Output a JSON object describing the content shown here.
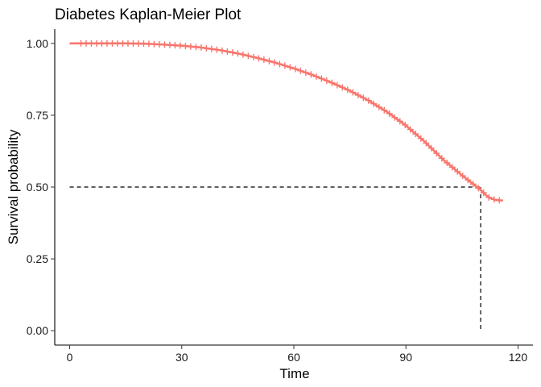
{
  "chart_data": {
    "type": "line",
    "title": "Diabetes Kaplan-Meier Plot",
    "xlabel": "Time",
    "ylabel": "Survival probability",
    "xlim": [
      -4,
      124
    ],
    "ylim": [
      -0.05,
      1.05
    ],
    "xticks": [
      0,
      30,
      60,
      90,
      120
    ],
    "xtick_labels": [
      "0",
      "30",
      "60",
      "90",
      "120"
    ],
    "yticks": [
      0,
      0.25,
      0.5,
      0.75,
      1.0
    ],
    "ytick_labels": [
      "0.00",
      "0.25",
      "0.50",
      "0.75",
      "1.00"
    ],
    "grid": false,
    "legend": "none",
    "series": [
      {
        "color": "#F8766D",
        "x": [
          0,
          5,
          10,
          15,
          20,
          25,
          30,
          35,
          40,
          45,
          50,
          55,
          60,
          65,
          70,
          75,
          80,
          85,
          90,
          95,
          100,
          105,
          110,
          112,
          114,
          116
        ],
        "y": [
          1.0,
          1.0,
          1.0,
          1.0,
          0.999,
          0.996,
          0.992,
          0.986,
          0.977,
          0.965,
          0.95,
          0.933,
          0.913,
          0.89,
          0.864,
          0.835,
          0.801,
          0.761,
          0.714,
          0.658,
          0.595,
          0.541,
          0.49,
          0.465,
          0.455,
          0.453
        ],
        "censor_markers": true
      }
    ],
    "median_survival": {
      "time": 110,
      "probability": 0.5,
      "line_style": "dashed"
    }
  }
}
